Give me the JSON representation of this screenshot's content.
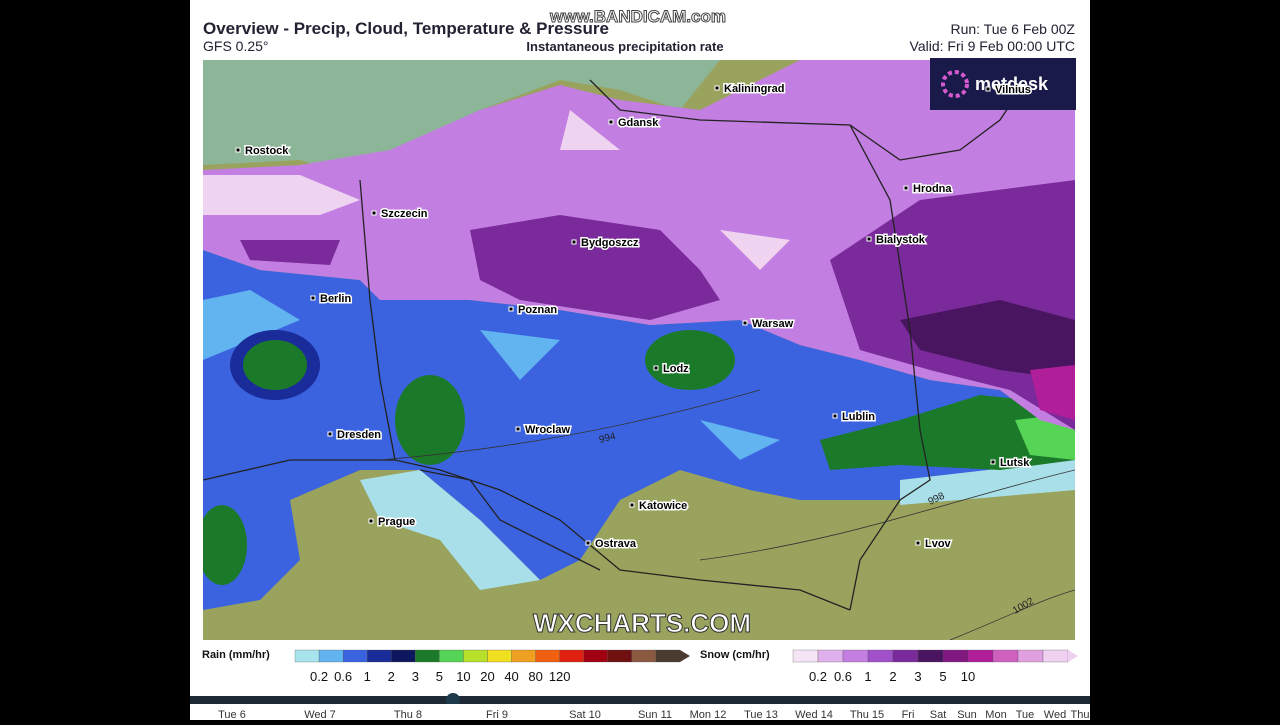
{
  "header": {
    "title": "Overview - Precip, Cloud, Temperature & Pressure",
    "model": "GFS 0.25°",
    "subtitle": "Instantaneous precipitation rate",
    "run": "Run: Tue 6 Feb 00Z",
    "valid": "Valid: Fri 9 Feb 00:00 UTC"
  },
  "watermark": "www.BANDICAM.com",
  "logo": "metdesk",
  "map": {
    "cities": [
      "Kaliningrad",
      "Gdansk",
      "Rostock",
      "Hrodna",
      "Szczecin",
      "Bialystok",
      "Bydgoszcz",
      "Berlin",
      "Poznan",
      "Warsaw",
      "Lodz",
      "Lublin",
      "Wroclaw",
      "Dresden",
      "Lutsk",
      "Katowice",
      "Prague",
      "Ostrava",
      "Lvov",
      "Vilnius"
    ],
    "isobars": [
      "994",
      "998",
      "1002"
    ],
    "credit": "WXCHARTS.COM"
  },
  "legend": {
    "rain": {
      "label": "Rain (mm/hr)",
      "ticks": [
        "0.2",
        "0.6",
        "1",
        "2",
        "3",
        "5",
        "10",
        "20",
        "40",
        "80",
        "120"
      ]
    },
    "snow": {
      "label": "Snow (cm/hr)",
      "ticks": [
        "0.2",
        "0.6",
        "1",
        "2",
        "3",
        "5",
        "10"
      ]
    }
  },
  "timeline": [
    "Tue 6",
    "Wed 7",
    "Thu 8",
    "Fri 9",
    "Sat 10",
    "Sun 11",
    "Mon 12",
    "Tue 13",
    "Wed 14",
    "Thu 15",
    "Fri",
    "Sat",
    "Sun",
    "Mon",
    "Tue",
    "Wed",
    "Thu"
  ]
}
